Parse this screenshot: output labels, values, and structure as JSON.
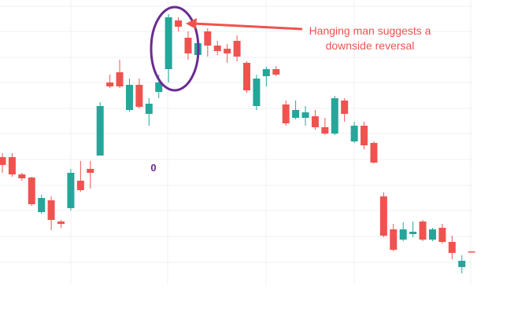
{
  "chart_data": {
    "type": "candlestick",
    "up_color": "#26a69a",
    "down_color": "#ef5350",
    "ylim": [
      0,
      360
    ],
    "open": [
      160,
      160,
      138,
      134,
      90,
      105,
      78,
      95,
      130,
      145,
      162,
      255,
      268,
      220,
      252,
      215,
      243,
      272,
      334,
      312,
      290,
      320,
      302,
      298,
      308,
      280,
      225,
      263,
      272,
      227,
      210,
      210,
      212,
      198,
      190,
      232,
      180,
      200,
      178,
      110,
      68,
      55,
      62,
      78,
      55,
      70,
      52,
      20,
      40
    ],
    "high": [
      165,
      165,
      140,
      135,
      112,
      110,
      80,
      145,
      155,
      155,
      230,
      265,
      284,
      260,
      260,
      235,
      265,
      342,
      338,
      320,
      310,
      324,
      308,
      304,
      315,
      282,
      265,
      275,
      276,
      232,
      232,
      225,
      220,
      210,
      238,
      235,
      205,
      205,
      180,
      115,
      75,
      77,
      78,
      80,
      70,
      75,
      60,
      35,
      40
    ],
    "low": [
      140,
      135,
      130,
      98,
      88,
      67,
      70,
      92,
      116,
      120,
      162,
      248,
      248,
      218,
      222,
      200,
      235,
      255,
      320,
      284,
      285,
      288,
      290,
      280,
      282,
      242,
      220,
      250,
      263,
      200,
      208,
      200,
      195,
      188,
      188,
      205,
      178,
      170,
      152,
      58,
      40,
      53,
      58,
      53,
      53,
      50,
      30,
      12,
      39
    ],
    "close": [
      150,
      138,
      133,
      100,
      108,
      80,
      75,
      140,
      118,
      140,
      225,
      250,
      250,
      252,
      224,
      228,
      255,
      338,
      326,
      292,
      305,
      302,
      295,
      292,
      288,
      245,
      260,
      272,
      265,
      203,
      220,
      217,
      198,
      190,
      235,
      215,
      200,
      175,
      153,
      60,
      42,
      68,
      65,
      55,
      68,
      52,
      38,
      28,
      39
    ],
    "annotation": [
      "Hanging man suggests a",
      "downside reversal"
    ],
    "annotation_color": "#ef5350",
    "highlight_color": "#6a2c91",
    "label": "0"
  }
}
